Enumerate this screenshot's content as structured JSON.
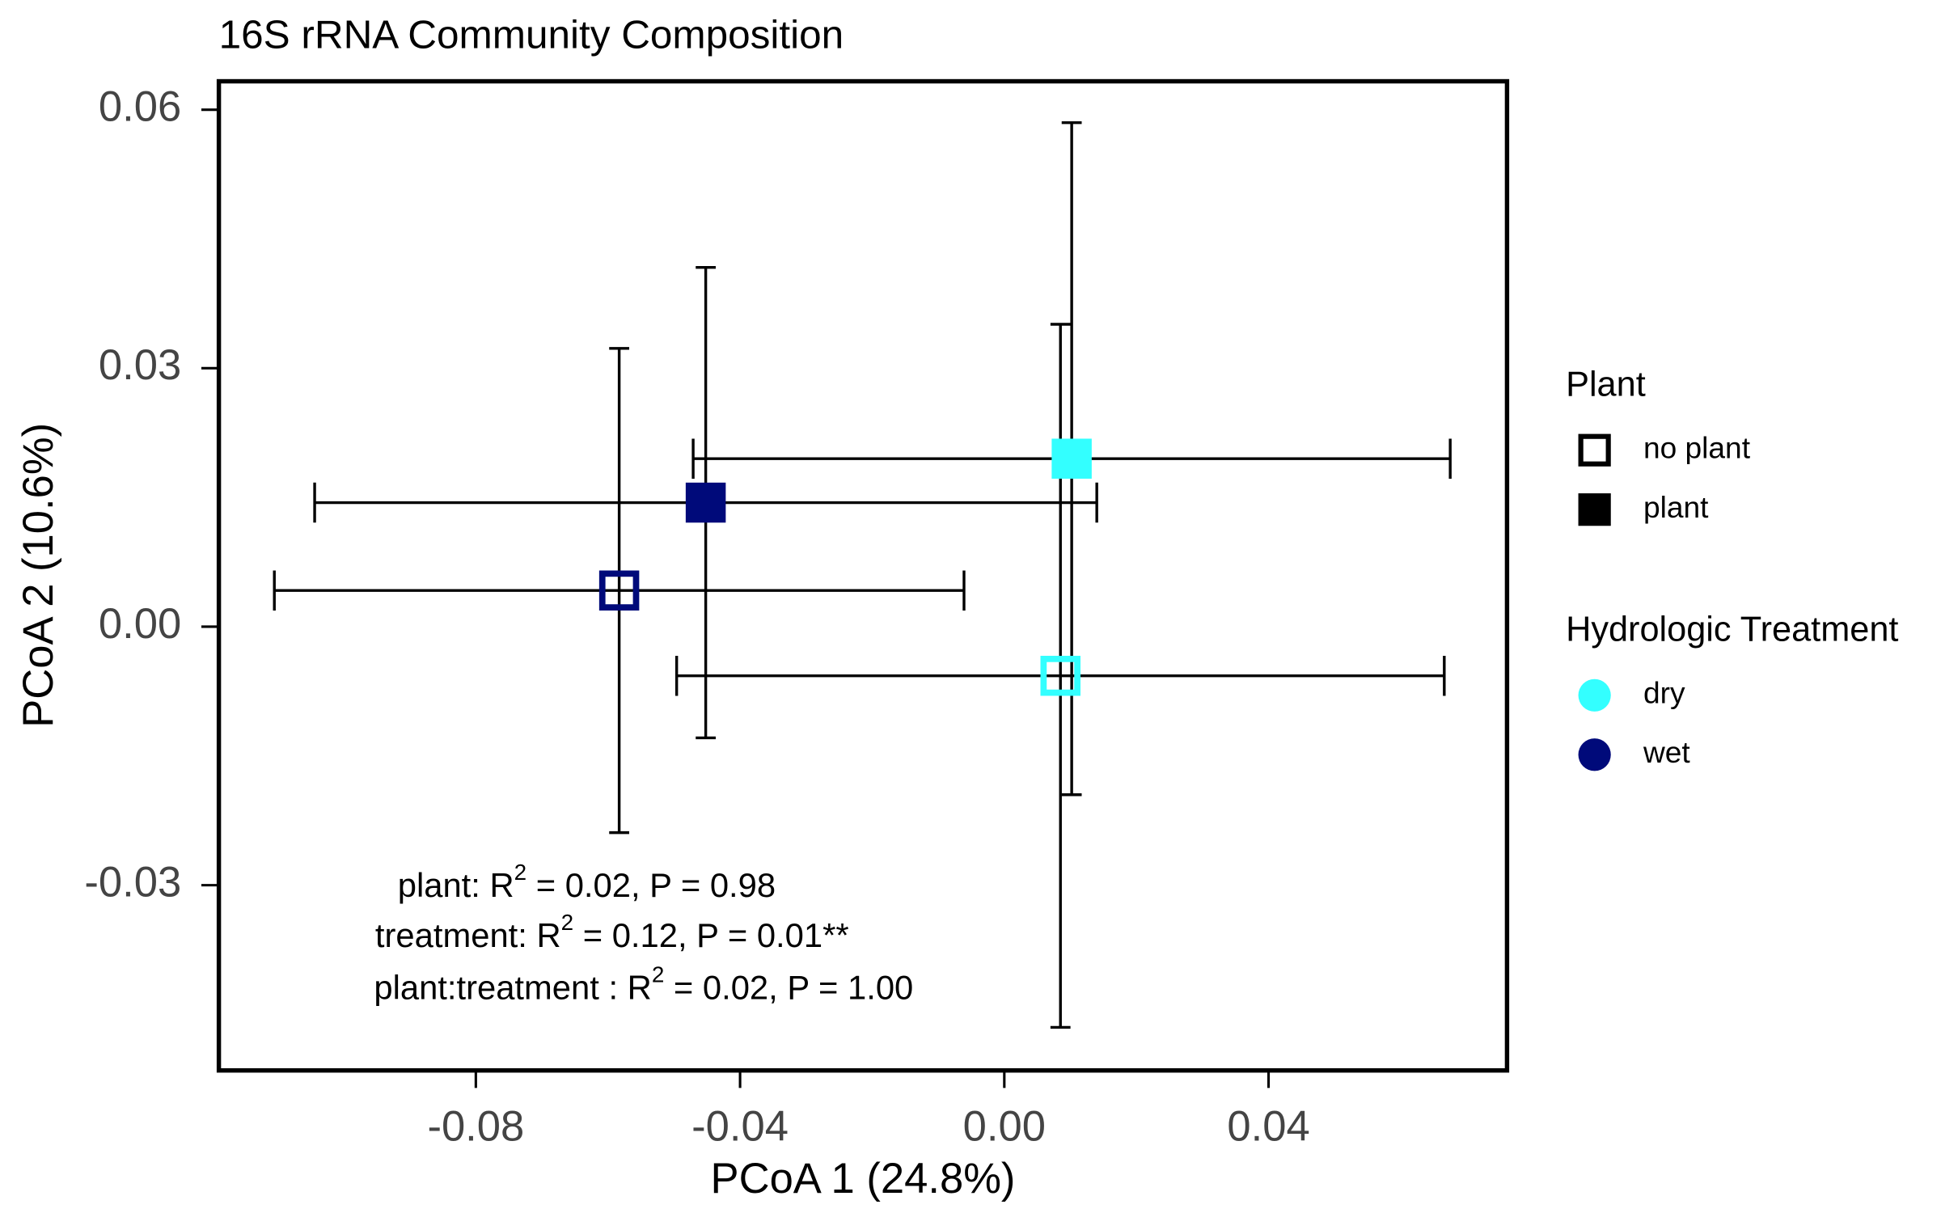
{
  "chart_data": {
    "type": "scatter",
    "title": "16S rRNA Community Composition",
    "xlabel": "PCoA 1 (24.8%)",
    "ylabel": "PCoA 2 (10.6%)",
    "xlim": [
      -0.1189,
      0.0761
    ],
    "ylim": [
      -0.0515,
      0.0633
    ],
    "xticks": [
      -0.08,
      -0.04,
      {
        "value": 0,
        "label": "0.00"
      },
      0.04
    ],
    "yticks": [
      -0.03,
      {
        "value": 0,
        "label": "0.00"
      },
      0.03,
      0.06
    ],
    "series": [
      {
        "x": [
          0.0102
        ],
        "y": [
          0.0195
        ],
        "x_err": [
          0.0573
        ],
        "y_err": [
          0.039
        ],
        "color": "#33ffff",
        "filled": true
      },
      {
        "x": [
          -0.0452
        ],
        "y": [
          0.0144
        ],
        "x_err": [
          0.0592
        ],
        "y_err": [
          0.0273
        ],
        "color": "#000a7a",
        "filled": true
      },
      {
        "x": [
          -0.0583
        ],
        "y": [
          0.0042
        ],
        "x_err": [
          0.0522
        ],
        "y_err": [
          0.0281
        ],
        "color": "#000a7a",
        "filled": false
      },
      {
        "x": [
          0.0085
        ],
        "y": [
          -0.0057
        ],
        "x_err": [
          0.0581
        ],
        "y_err": [
          0.0408
        ],
        "color": "#33ffff",
        "filled": false
      }
    ],
    "annotations": [
      {
        "before": "plant: R",
        "sup": "2",
        "after": " = 0.02, P = 0.98"
      },
      {
        "before": "treatment: R",
        "sup": "2",
        "after": " = 0.12, P = 0.01**"
      },
      {
        "before": "plant:treatment : R",
        "sup": "2",
        "after": " = 0.02, P = 1.00"
      }
    ],
    "legends": [
      {
        "title": "Plant",
        "items": [
          {
            "label": "no plant",
            "filled": false,
            "color": "#000000"
          },
          {
            "label": "plant",
            "filled": true,
            "color": "#000000"
          }
        ]
      },
      {
        "title": "Hydrologic Treatment",
        "items": [
          {
            "label": "dry",
            "color": "#33ffff"
          },
          {
            "label": "wet",
            "color": "#000a7a"
          }
        ]
      }
    ]
  }
}
